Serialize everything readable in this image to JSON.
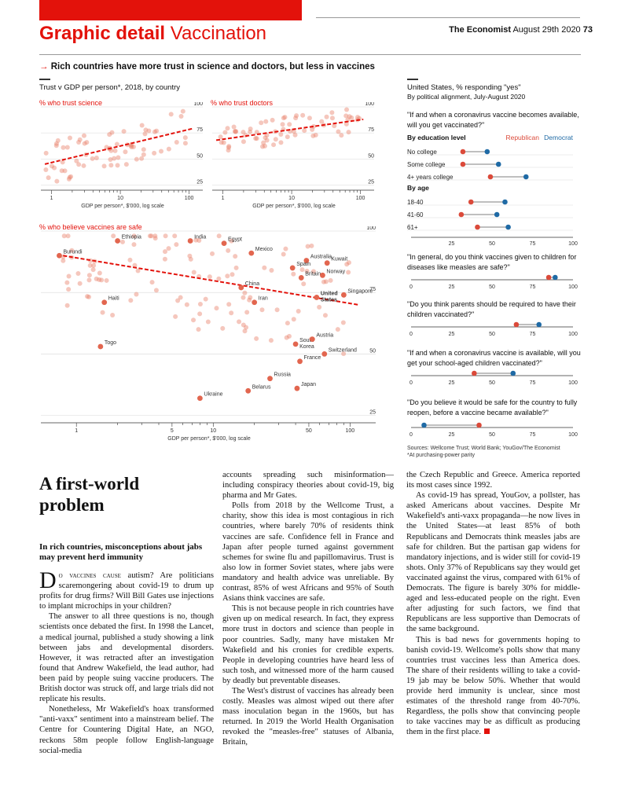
{
  "header": {
    "section_bold": "Graphic detail",
    "section_name": "Vaccination",
    "publication": "The Economist",
    "date": "August 29th 2020",
    "page": "73"
  },
  "chart_subtitle": "Rich countries have more trust in science and doctors, but less in vaccines",
  "left_panel_title": "Trust v GDP per person*, 2018, by country",
  "chart_data": [
    {
      "type": "scatter",
      "title": "% who trust science",
      "xlabel": "GDP per person*, $'000, log scale",
      "x_ticks": [
        "1",
        "10",
        "100"
      ],
      "y_ticks": [
        "25",
        "50",
        "75",
        "100"
      ],
      "xlim": [
        0.7,
        150
      ],
      "ylim": [
        20,
        100
      ],
      "trend_line": [
        [
          0.8,
          45
        ],
        [
          110,
          79
        ]
      ]
    },
    {
      "type": "scatter",
      "title": "% who trust doctors",
      "xlabel": "GDP per person*, $'000, log scale",
      "x_ticks": [
        "1",
        "10",
        "100"
      ],
      "y_ticks": [
        "25",
        "50",
        "75",
        "100"
      ],
      "xlim": [
        0.7,
        150
      ],
      "ylim": [
        20,
        100
      ],
      "trend_line": [
        [
          0.8,
          68
        ],
        [
          110,
          88
        ]
      ]
    },
    {
      "type": "scatter",
      "title": "% who believe vaccines are safe",
      "xlabel": "GDP per person*, $'000, log scale",
      "x_ticks": [
        "1",
        "5",
        "10",
        "50",
        "100"
      ],
      "y_ticks": [
        "25",
        "50",
        "75",
        "100"
      ],
      "xlim": [
        0.55,
        150
      ],
      "ylim": [
        22,
        100
      ],
      "trend_line": [
        [
          0.8,
          90
        ],
        [
          115,
          70
        ]
      ],
      "labelled_points": [
        {
          "name": "Ethiopia",
          "x": 2,
          "y": 96
        },
        {
          "name": "India",
          "x": 6.8,
          "y": 96
        },
        {
          "name": "Egypt",
          "x": 12,
          "y": 95
        },
        {
          "name": "Burundi",
          "x": 0.75,
          "y": 90
        },
        {
          "name": "Mexico",
          "x": 19,
          "y": 91
        },
        {
          "name": "Australia",
          "x": 48,
          "y": 88
        },
        {
          "name": "Kuwait",
          "x": 68,
          "y": 87
        },
        {
          "name": "Spain",
          "x": 38,
          "y": 85
        },
        {
          "name": "Britain",
          "x": 44,
          "y": 81
        },
        {
          "name": "Norway",
          "x": 63,
          "y": 82
        },
        {
          "name": "China",
          "x": 16,
          "y": 77
        },
        {
          "name": "Singapore",
          "x": 90,
          "y": 74
        },
        {
          "name": "Haiti",
          "x": 1.6,
          "y": 71
        },
        {
          "name": "United States",
          "x": 57,
          "y": 73
        },
        {
          "name": "Iran",
          "x": 20,
          "y": 71
        },
        {
          "name": "Togo",
          "x": 1.5,
          "y": 53
        },
        {
          "name": "South Korea",
          "x": 40,
          "y": 54
        },
        {
          "name": "Austria",
          "x": 53,
          "y": 56
        },
        {
          "name": "Switzerland",
          "x": 65,
          "y": 50
        },
        {
          "name": "France",
          "x": 43,
          "y": 47
        },
        {
          "name": "Russia",
          "x": 26,
          "y": 40
        },
        {
          "name": "Japan",
          "x": 41,
          "y": 36
        },
        {
          "name": "Belarus",
          "x": 18,
          "y": 35
        },
        {
          "name": "Ukraine",
          "x": 8,
          "y": 32
        }
      ]
    },
    {
      "type": "dot_plot",
      "title": "United States, % responding \"yes\"",
      "subtitle": "By political alignment, July-August 2020",
      "question": "\"If and when a coronavirus vaccine becomes available, will you get vaccinated?\"",
      "x_ticks": [
        "25",
        "50",
        "75",
        "100"
      ],
      "xlim": [
        0,
        100
      ],
      "legend": [
        "Republican",
        "Democrat"
      ],
      "groups": [
        {
          "heading": "By education level",
          "rows": [
            {
              "label": "No college",
              "republican": 32,
              "democrat": 47
            },
            {
              "label": "Some college",
              "republican": 32,
              "democrat": 54
            },
            {
              "label": "4+ years college",
              "republican": 49,
              "democrat": 71
            }
          ]
        },
        {
          "heading": "By age",
          "rows": [
            {
              "label": "18-40",
              "republican": 37,
              "democrat": 58
            },
            {
              "label": "41-60",
              "republican": 31,
              "democrat": 53
            },
            {
              "label": "61+",
              "republican": 41,
              "democrat": 60
            }
          ]
        }
      ]
    },
    {
      "type": "dot_plot",
      "question": "\"In general, do you think vaccines given to children for diseases like measles are safe?\"",
      "x_ticks": [
        "0",
        "25",
        "50",
        "75",
        "100"
      ],
      "republican": 85,
      "democrat": 89
    },
    {
      "type": "dot_plot",
      "question": "\"Do you think parents should be required to have their children vaccinated?\"",
      "x_ticks": [
        "0",
        "25",
        "50",
        "75",
        "100"
      ],
      "republican": 65,
      "democrat": 79
    },
    {
      "type": "dot_plot",
      "question": "\"If and when a coronavirus vaccine is available, will you get your school-aged children vaccinated?\"",
      "x_ticks": [
        "0",
        "25",
        "50",
        "75",
        "100"
      ],
      "republican": 39,
      "democrat": 63
    },
    {
      "type": "dot_plot",
      "question": "\"Do you believe it would be safe for the country to fully reopen, before a vaccine became available?\"",
      "x_ticks": [
        "0",
        "25",
        "50",
        "75",
        "100"
      ],
      "republican": 42,
      "democrat": 8
    }
  ],
  "colors": {
    "red": "#e3120b",
    "republican": "#db4a3a",
    "democrat": "#1f6aa5"
  },
  "sources": "Sources: Wellcome Trust; World Bank; YouGov/The Economist",
  "footnote": "*At purchasing-power parity",
  "article": {
    "headline": "A first-world problem",
    "rubric": "In rich countries, misconceptions about jabs may prevent herd immunity",
    "dropcap": "D",
    "lead_smallcaps": "o vaccines cause",
    "lead_rest": " autism? Are politicians scaremongering about covid-19 to drum up profits for drug firms? Will Bill Gates use injections to implant microchips in your children?",
    "p2": "The answer to all three questions is no, though scientists once debated the first. In 1998 the Lancet, a medical journal, published a study showing a link between jabs and developmental disorders. However, it was retracted after an investigation found that Andrew Wakefield, the lead author, had been paid by people suing vaccine producers. The British doctor was struck off, and large trials did not replicate his results.",
    "p3": "Nonetheless, Mr Wakefield's hoax transformed \"anti-vaxx\" sentiment into a mainstream belief. The Centre for Countering Digital Hate, an NGO, reckons 58m people follow English-language social-media",
    "p4": "accounts spreading such misinformation—including conspiracy theories about covid-19, big pharma and Mr Gates.",
    "p5": "Polls from 2018 by the Wellcome Trust, a charity, show this idea is most contagious in rich countries, where barely 70% of residents think vaccines are safe. Confidence fell in France and Japan after people turned against government schemes for swine flu and papillomavirus. Trust is also low in former Soviet states, where jabs were mandatory and health advice was unreliable. By contrast, 85% of west Africans and 95% of South Asians think vaccines are safe.",
    "p6": "This is not because people in rich countries have given up on medical research. In fact, they express more trust in doctors and science than people in poor countries. Sadly, many have mistaken Mr Wakefield and his cronies for credible experts. People in developing countries have heard less of such tosh, and witnessed more of the harm caused by deadly but preventable diseases.",
    "p7": "The West's distrust of vaccines has already been costly. Measles was almost wiped out there after mass inoculation began in the 1960s, but has returned. In 2019 the World Health Organisation revoked the \"measles-free\" statuses of Albania, Britain,",
    "p8": "the Czech Republic and Greece. America reported its most cases since 1992.",
    "p9": "As covid-19 has spread, YouGov, a pollster, has asked Americans about vaccines. Despite Mr Wakefield's anti-vaxx propaganda—he now lives in the United States—at least 85% of both Republicans and Democrats think measles jabs are safe for children. But the partisan gap widens for mandatory injections, and is wider still for covid-19 shots. Only 37% of Republicans say they would get vaccinated against the virus, compared with 61% of Democrats. The figure is barely 30% for middle-aged and less-educated people on the right. Even after adjusting for such factors, we find that Republicans are less supportive than Democrats of the same background.",
    "p10": "This is bad news for governments hoping to banish covid-19. Wellcome's polls show that many countries trust vaccines less than America does. The share of their residents willing to take a covid-19 jab may be below 50%. Whether that would provide herd immunity is unclear, since most estimates of the threshold range from 40-70%. Regardless, the polls show that convincing people to take vaccines may be as difficult as producing them in the first place."
  }
}
